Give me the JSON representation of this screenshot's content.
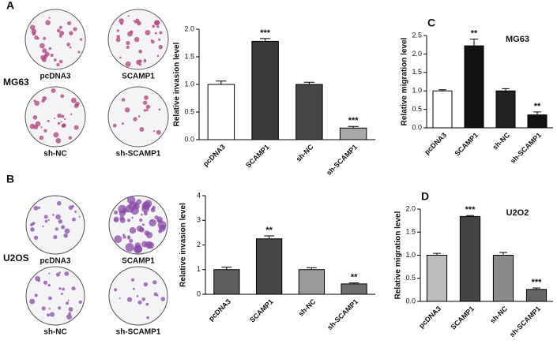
{
  "panels": [
    {
      "label": "A",
      "cell_line": "MG63",
      "images": [
        "pcDNA3",
        "SCAMP1",
        "sh-NC",
        "sh-SCAMP1"
      ]
    },
    {
      "label": "B",
      "cell_line": "U2OS",
      "images": [
        "pcDNA3",
        "SCAMP1",
        "sh-NC",
        "sh-SCAMP1"
      ]
    }
  ],
  "chart_data": [
    {
      "type": "bar",
      "ylabel": "Relative invasion level",
      "categories": [
        "pcDNA3",
        "SCAMP1",
        "sh-NC",
        "sh-SCAMP1"
      ],
      "values": [
        1.0,
        1.78,
        1.0,
        0.21
      ],
      "errors": [
        0.06,
        0.05,
        0.04,
        0.03
      ],
      "annotations": [
        null,
        "***",
        null,
        "***"
      ],
      "colors": [
        "#ffffff",
        "#3a3a3a",
        "#454545",
        "#a8a8a8"
      ],
      "ylim": [
        0,
        2.0
      ],
      "yticks": [
        {
          "value": 0,
          "label": "0.0"
        },
        {
          "value": 0.5,
          "label": "0.5"
        },
        {
          "value": 1,
          "label": "1.0"
        },
        {
          "value": 1.5,
          "label": "1.5"
        },
        {
          "value": 2,
          "label": "2.0"
        }
      ]
    },
    {
      "type": "bar",
      "ylabel": "Relative invasion level",
      "categories": [
        "pcDNA3",
        "SCAMP1",
        "sh-NC",
        "sh-SCAMP1"
      ],
      "values": [
        1.0,
        2.25,
        1.0,
        0.42
      ],
      "errors": [
        0.1,
        0.12,
        0.08,
        0.04
      ],
      "annotations": [
        null,
        "**",
        null,
        "**"
      ],
      "colors": [
        "#5e5e5e",
        "#464646",
        "#9a9a9a",
        "#6e6e6e"
      ],
      "ylim": [
        0,
        4
      ],
      "yticks": [
        0,
        1,
        2,
        3,
        4
      ]
    },
    {
      "type": "bar",
      "panel": "C",
      "title": "MG63",
      "ylabel": "Relative migration level",
      "categories": [
        "pcDNA3",
        "SCAMP1",
        "sh-NC",
        "sh-SCAMP1"
      ],
      "values": [
        1.0,
        2.22,
        1.0,
        0.35
      ],
      "errors": [
        0.03,
        0.18,
        0.06,
        0.08
      ],
      "annotations": [
        null,
        "**",
        null,
        "**"
      ],
      "colors": [
        "#ffffff",
        "#111111",
        "#222222",
        "#111111"
      ],
      "ylim": [
        0,
        2.5
      ],
      "yticks": [
        {
          "value": 0,
          "label": "0.0"
        },
        {
          "value": 0.5,
          "label": "0.5"
        },
        {
          "value": 1,
          "label": "1.0"
        },
        {
          "value": 1.5,
          "label": "1.5"
        },
        {
          "value": 2,
          "label": "2.0"
        },
        {
          "value": 2.5,
          "label": "2.5"
        }
      ]
    },
    {
      "type": "bar",
      "panel": "D",
      "title": "U2O2",
      "ylabel": "Relative migration level",
      "categories": [
        "pcDNA3",
        "SCAMP1",
        "sh-NC",
        "sh-SCAMP1"
      ],
      "values": [
        1.0,
        1.84,
        1.0,
        0.26
      ],
      "errors": [
        0.04,
        0.02,
        0.06,
        0.03
      ],
      "annotations": [
        null,
        "***",
        null,
        "***"
      ],
      "colors": [
        "#bcbcbc",
        "#444444",
        "#8a8a8a",
        "#666666"
      ],
      "ylim": [
        0,
        2.0
      ],
      "yticks": [
        {
          "value": 0,
          "label": "0.0"
        },
        {
          "value": 0.5,
          "label": "0.5"
        },
        {
          "value": 1,
          "label": "1.0"
        },
        {
          "value": 1.5,
          "label": "1.5"
        },
        {
          "value": 2,
          "label": "2.0"
        }
      ]
    }
  ]
}
